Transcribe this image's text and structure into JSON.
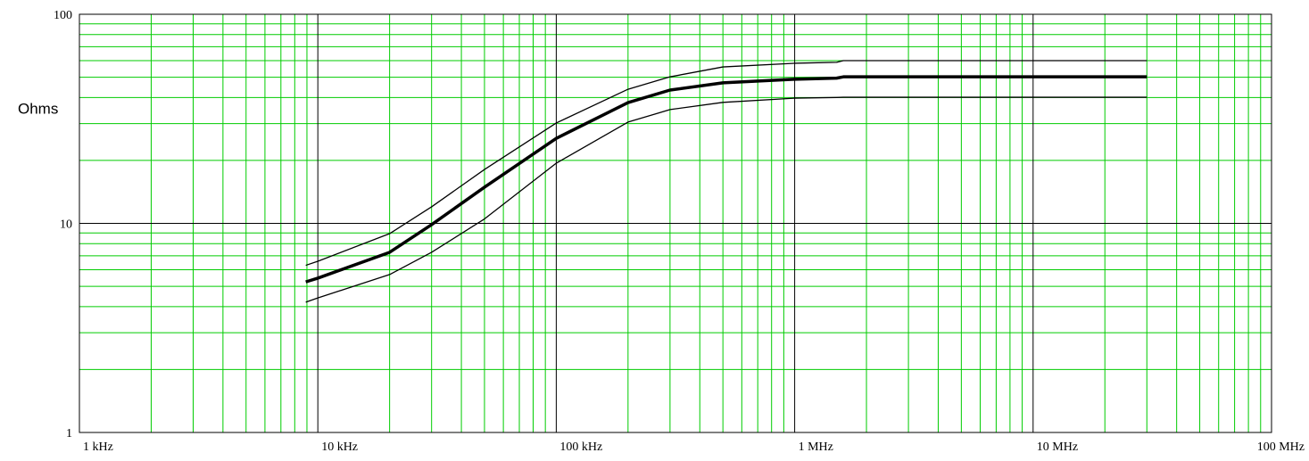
{
  "chart_data": {
    "type": "line",
    "ylabel": "Ohms",
    "x": [
      8900,
      10000,
      20000,
      30000,
      50000,
      100000,
      200000,
      300000,
      500000,
      1000000,
      1500000,
      1600000,
      30000000
    ],
    "series": [
      {
        "color": "#000000",
        "width": 1.3,
        "values": [
          6.3,
          6.59,
          8.93,
          12,
          18.1,
          30.2,
          43.8,
          50.2,
          56,
          58.3,
          58.9,
          60,
          60
        ]
      },
      {
        "color": "#000000",
        "width": 3.5,
        "values": [
          5.25,
          5.47,
          7.27,
          9.86,
          14.9,
          25.5,
          37.8,
          43.4,
          47,
          48.9,
          49.5,
          50.2,
          50.2
        ]
      },
      {
        "color": "#000000",
        "width": 1.3,
        "values": [
          4.2,
          4.4,
          5.69,
          7.27,
          10.5,
          19.4,
          30.5,
          35,
          37.9,
          39.7,
          40,
          40.1,
          40.1
        ]
      }
    ],
    "xscale": "log",
    "yscale": "log",
    "xlim": [
      1000,
      100000000
    ],
    "xticks": [
      {
        "value": 1000,
        "label": "1 kHz"
      },
      {
        "value": 10000,
        "label": "10 kHz"
      },
      {
        "value": 100000,
        "label": "100 kHz"
      },
      {
        "value": 1000000,
        "label": "1 MHz"
      },
      {
        "value": 10000000,
        "label": "10 MHz"
      },
      {
        "value": 100000000,
        "label": "100 MHz"
      }
    ],
    "ylim": [
      1,
      100
    ],
    "yticks": [
      1,
      10,
      100
    ],
    "grid": true,
    "minor_grid": true,
    "grid_color": "#00cc00"
  }
}
